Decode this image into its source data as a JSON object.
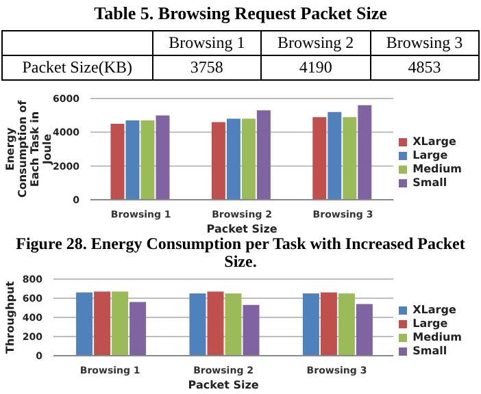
{
  "chart_data": [
    {
      "type": "other",
      "title": "Table 5. Browsing Request Packet Size",
      "ylabel": "Packet Size(KB)",
      "categories": [
        "Browsing 1",
        "Browsing 2",
        "Browsing 3"
      ],
      "values": [
        3758,
        4190,
        4853
      ],
      "data_labels": true
    },
    {
      "type": "bar",
      "categories": [
        "Browsing 1",
        "Browsing 2",
        "Browsing 3"
      ],
      "xlabel": "Packet Size",
      "ylabel": "Energy Consumption of Each Task in Joule",
      "ylim": [
        0,
        6000
      ],
      "yticks": [
        0,
        2000,
        4000,
        6000
      ],
      "grid": "y",
      "legend": "right",
      "annotations": [
        "Figure 28. Energy Consumption per Task with Increased Packet Size."
      ],
      "series": [
        {
          "name": "XLarge",
          "color": "#c0504d",
          "values": [
            4500,
            4600,
            4900
          ]
        },
        {
          "name": "Large",
          "color": "#4f81bd",
          "values": [
            4700,
            4800,
            5200
          ]
        },
        {
          "name": "Medium",
          "color": "#9bbb59",
          "values": [
            4700,
            4800,
            4900
          ]
        },
        {
          "name": "Small",
          "color": "#8064a2",
          "values": [
            5000,
            5300,
            5600
          ]
        }
      ]
    },
    {
      "type": "bar",
      "categories": [
        "Browsing 1",
        "Browsing 2",
        "Browsing 3"
      ],
      "xlabel": "Packet Size",
      "ylabel": "Throughput",
      "ylim": [
        0,
        800
      ],
      "yticks": [
        0,
        200,
        400,
        600,
        800
      ],
      "grid": "y",
      "legend": "right",
      "series": [
        {
          "name": "XLarge",
          "color": "#4f81bd",
          "values": [
            660,
            650,
            650
          ]
        },
        {
          "name": "Large",
          "color": "#c0504d",
          "values": [
            670,
            670,
            660
          ]
        },
        {
          "name": "Medium",
          "color": "#9bbb59",
          "values": [
            670,
            650,
            650
          ]
        },
        {
          "name": "Small",
          "color": "#8064a2",
          "values": [
            560,
            530,
            540
          ]
        }
      ]
    }
  ]
}
